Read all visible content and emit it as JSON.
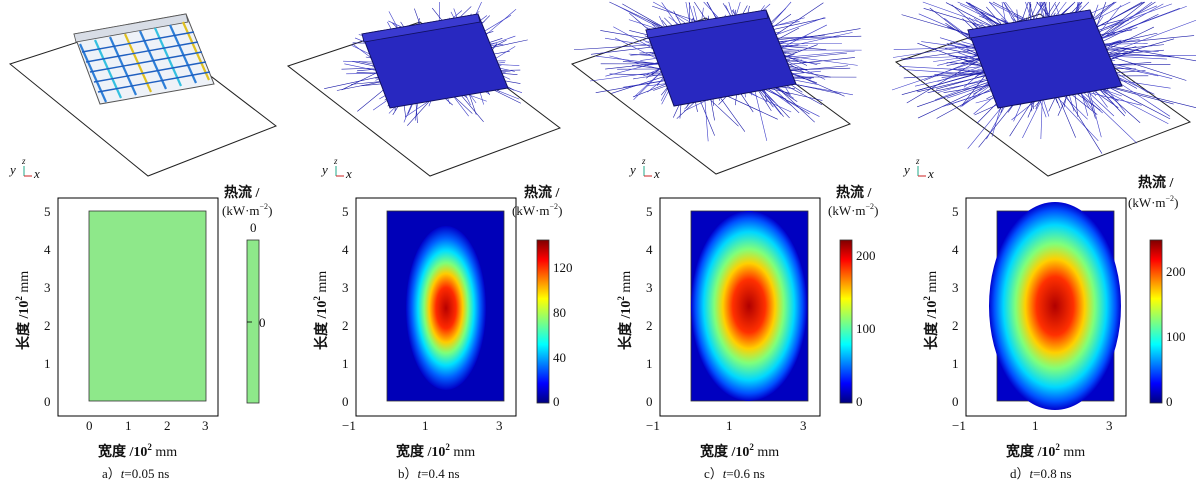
{
  "figure": {
    "panels": [
      {
        "id": "a",
        "caption_prefix": "a）",
        "caption_var": "t",
        "caption_value": "=0.05 ns",
        "axes_triad": {
          "y": "y",
          "z": "z",
          "x": "x"
        },
        "colorbar_title": "热流 /",
        "colorbar_unit": "(kW·m",
        "colorbar_exp": "−2",
        "colorbar_ticks": [
          "0",
          "0"
        ],
        "ylabel": "长度 /10",
        "ylabel_exp": "2",
        "ylabel_unit": " mm",
        "xlabel": "宽度 /10",
        "xlabel_exp": "2",
        "xlabel_unit": " mm",
        "yticks": [
          "0",
          "1",
          "2",
          "3",
          "4",
          "5"
        ],
        "xticks": [
          "0",
          "1",
          "2",
          "3"
        ],
        "fill_color": "#8ee88a"
      },
      {
        "id": "b",
        "caption_prefix": "b）",
        "caption_var": "t",
        "caption_value": "=0.4 ns",
        "axes_triad": {
          "y": "y",
          "z": "z",
          "x": "x"
        },
        "colorbar_title": "热流 /",
        "colorbar_unit": "(kW·m",
        "colorbar_exp": "−2",
        "colorbar_ticks": [
          "120",
          "80",
          "40",
          "0"
        ],
        "ylabel": "长度 /10",
        "ylabel_exp": "2",
        "ylabel_unit": " mm",
        "xlabel": "宽度 /10",
        "xlabel_exp": "2",
        "xlabel_unit": " mm",
        "yticks": [
          "0",
          "1",
          "2",
          "3",
          "4",
          "5"
        ],
        "xticks": [
          "−1",
          "1",
          "3"
        ]
      },
      {
        "id": "c",
        "caption_prefix": "c）",
        "caption_var": "t",
        "caption_value": "=0.6 ns",
        "axes_triad": {
          "y": "y",
          "z": "z",
          "x": "x"
        },
        "colorbar_title": "热流 /",
        "colorbar_unit": "(kW·m",
        "colorbar_exp": "−2",
        "colorbar_ticks": [
          "200",
          "100",
          "0"
        ],
        "ylabel": "长度 /10",
        "ylabel_exp": "2",
        "ylabel_unit": " mm",
        "xlabel": "宽度 /10",
        "xlabel_exp": "2",
        "xlabel_unit": " mm",
        "yticks": [
          "0",
          "1",
          "2",
          "3",
          "4",
          "5"
        ],
        "xticks": [
          "−1",
          "1",
          "3"
        ]
      },
      {
        "id": "d",
        "caption_prefix": "d）",
        "caption_var": "t",
        "caption_value": "=0.8 ns",
        "axes_triad": {
          "y": "y",
          "z": "z",
          "x": "x"
        },
        "colorbar_title": "热流 /",
        "colorbar_unit": "(kW·m",
        "colorbar_exp": "−2",
        "colorbar_ticks": [
          "200",
          "100",
          "0"
        ],
        "ylabel": "长度 /10",
        "ylabel_exp": "2",
        "ylabel_unit": " mm",
        "xlabel": "宽度 /10",
        "xlabel_exp": "2",
        "xlabel_unit": " mm",
        "yticks": [
          "0",
          "1",
          "2",
          "3",
          "4",
          "5"
        ],
        "xticks": [
          "−1",
          "1",
          "3"
        ]
      }
    ],
    "colors": {
      "arrow_blue": "#1a1aa8",
      "slab_blue": "#2323b8",
      "jet_low": "#00007f",
      "jet_high": "#7f0000"
    }
  }
}
